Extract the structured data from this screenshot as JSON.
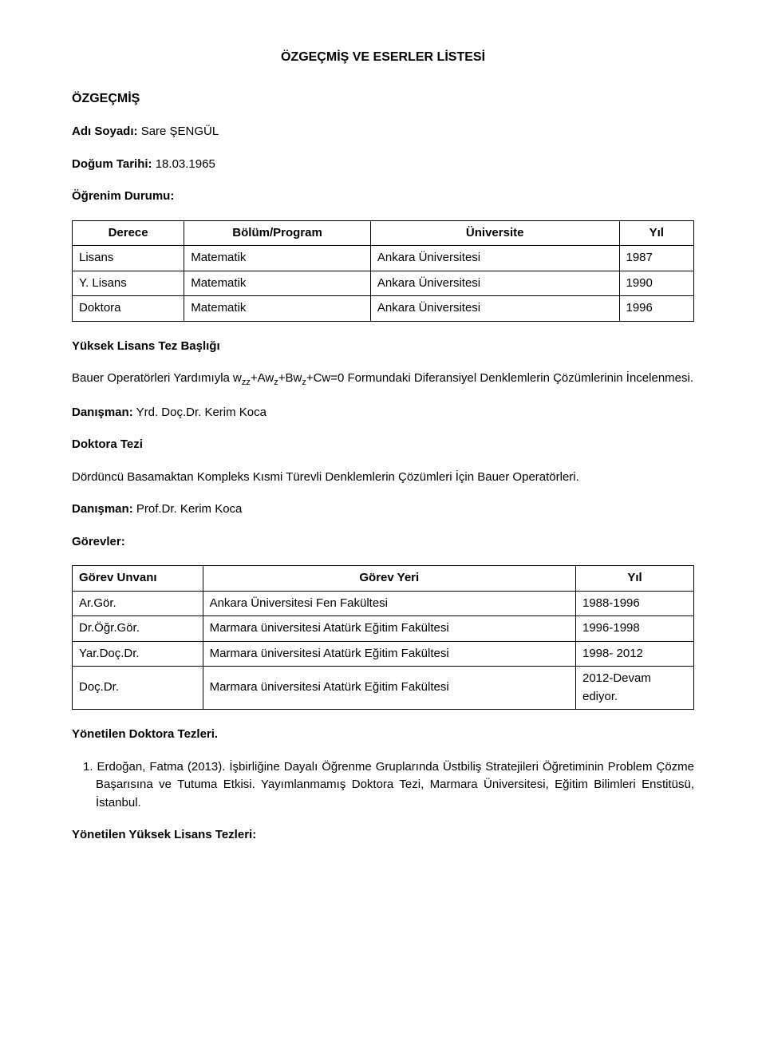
{
  "mainTitle": "ÖZGEÇMİŞ VE ESERLER LİSTESİ",
  "cvTitle": "ÖZGEÇMİŞ",
  "nameLabel": "Adı Soyadı:",
  "nameValue": "Sare ŞENGÜL",
  "birthLabel": "Doğum Tarihi:",
  "birthValue": "18.03.1965",
  "eduLabel": "Öğrenim Durumu:",
  "eduTable": {
    "headers": [
      "Derece",
      "Bölüm/Program",
      "Üniversite",
      "Yıl"
    ],
    "rows": [
      [
        "Lisans",
        "Matematik",
        "Ankara Üniversitesi",
        "1987"
      ],
      [
        "Y. Lisans",
        "Matematik",
        "Ankara Üniversitesi",
        "1990"
      ],
      [
        "Doktora",
        "Matematik",
        "Ankara Üniversitesi",
        "1996"
      ]
    ]
  },
  "ylTitle": "Yüksek Lisans Tez Başlığı",
  "ylText1": "Bauer Operatörleri Yardımıyla w",
  "ylText2": "+Aw",
  "ylText3": "+Bw",
  "ylText4": "+Cw=0 Formundaki Diferansiyel Denklemlerin Çözümlerinin İncelenmesi.",
  "sub_zz": "zz",
  "sub_z": "z",
  "advisorLabel": "Danışman:",
  "advisor1": "Yrd. Doç.Dr. Kerim Koca",
  "phdTitle": "Doktora Tezi",
  "phdText": "Dördüncü Basamaktan Kompleks Kısmi Türevli Denklemlerin Çözümleri İçin Bauer Operatörleri.",
  "advisor2": "Prof.Dr. Kerim Koca",
  "gorevlerTitle": "Görevler:",
  "gorevTable": {
    "headers": [
      "Görev Unvanı",
      "Görev Yeri",
      "Yıl"
    ],
    "rows": [
      [
        "Ar.Gör.",
        "Ankara Üniversitesi Fen Fakültesi",
        "1988-1996"
      ],
      [
        "Dr.Öğr.Gör.",
        "Marmara üniversitesi Atatürk Eğitim Fakültesi",
        "1996-1998"
      ],
      [
        "Yar.Doç.Dr.",
        "Marmara üniversitesi Atatürk Eğitim Fakültesi",
        "1998- 2012"
      ],
      [
        "Doç.Dr.",
        "Marmara üniversitesi Atatürk Eğitim Fakültesi",
        "2012-Devam ediyor."
      ]
    ]
  },
  "supPhdTitle": "Yönetilen Doktora Tezleri.",
  "phdItem": "1. Erdoğan, Fatma (2013). İşbirliğine Dayalı Öğrenme Gruplarında Üstbiliş Stratejileri Öğretiminin Problem Çözme Başarısına ve Tutuma Etkisi. Yayımlanmamış Doktora Tezi, Marmara Üniversitesi, Eğitim Bilimleri Enstitüsü, İstanbul.",
  "supMscTitle": "Yönetilen Yüksek Lisans Tezleri:"
}
